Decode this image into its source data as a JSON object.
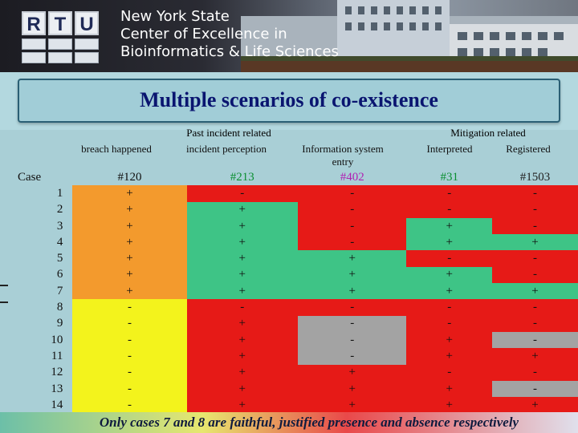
{
  "header": {
    "logo_letters": [
      "R",
      "T",
      "U"
    ],
    "org_lines": [
      "New York State",
      "Center of Excellence in",
      "Bioinformatics & Life Sciences"
    ]
  },
  "slide": {
    "title": "Multiple scenarios of co-existence",
    "footer": "Only cases 7 and 8 are faithful, justified presence and absence respectively"
  },
  "columns": {
    "group_incident": "Past incident related",
    "group_mitigation": "Mitigation related",
    "case_label": "Case",
    "headers": [
      "breach happened",
      "incident perception",
      "Information system entry",
      "Interpreted",
      "Registered"
    ],
    "totals": [
      "#120",
      "#213",
      "#402",
      "#31",
      "#1503"
    ]
  },
  "colors": {
    "orange": "#f39a2d",
    "yellow": "#f3f31c",
    "green": "#3ec486",
    "red": "#e61a17",
    "title": "#0a1570",
    "total_green": "#0b8f31",
    "total_purple": "#b11fb3"
  },
  "rows": [
    {
      "case": "1",
      "values": [
        "+",
        "-",
        "-",
        "-",
        "-"
      ],
      "colors": [
        "o",
        "r",
        "r",
        "r",
        "r"
      ]
    },
    {
      "case": "2",
      "values": [
        "+",
        "+",
        "-",
        "-",
        "-"
      ],
      "colors": [
        "o",
        "g",
        "r",
        "r",
        "r"
      ]
    },
    {
      "case": "3",
      "values": [
        "+",
        "+",
        "-",
        "+",
        "-"
      ],
      "colors": [
        "o",
        "g",
        "r",
        "g",
        "r"
      ]
    },
    {
      "case": "4",
      "values": [
        "+",
        "+",
        "-",
        "+",
        "+"
      ],
      "colors": [
        "o",
        "g",
        "r",
        "g",
        "g"
      ]
    },
    {
      "case": "5",
      "values": [
        "+",
        "+",
        "+",
        "-",
        "-"
      ],
      "colors": [
        "o",
        "g",
        "g",
        "r",
        "r"
      ]
    },
    {
      "case": "6",
      "values": [
        "+",
        "+",
        "+",
        "+",
        "-"
      ],
      "colors": [
        "o",
        "g",
        "g",
        "g",
        "r"
      ]
    },
    {
      "case": "7",
      "values": [
        "+",
        "+",
        "+",
        "+",
        "+"
      ],
      "colors": [
        "o",
        "g",
        "g",
        "g",
        "g"
      ]
    },
    {
      "case": "8",
      "values": [
        "-",
        "-",
        "-",
        "-",
        "-"
      ],
      "colors": [
        "y",
        "r",
        "r",
        "r",
        "r"
      ]
    },
    {
      "case": "9",
      "values": [
        "-",
        "+",
        "-",
        "-",
        "-"
      ],
      "colors": [
        "y",
        "r",
        "b",
        "r",
        "r"
      ]
    },
    {
      "case": "10",
      "values": [
        "-",
        "+",
        "-",
        "+",
        "-"
      ],
      "colors": [
        "y",
        "r",
        "b",
        "r",
        "b"
      ]
    },
    {
      "case": "11",
      "values": [
        "-",
        "+",
        "-",
        "+",
        "+"
      ],
      "colors": [
        "y",
        "r",
        "b",
        "r",
        "r"
      ]
    },
    {
      "case": "12",
      "values": [
        "-",
        "+",
        "+",
        "-",
        "-"
      ],
      "colors": [
        "y",
        "r",
        "r",
        "r",
        "r"
      ]
    },
    {
      "case": "13",
      "values": [
        "-",
        "+",
        "+",
        "+",
        "-"
      ],
      "colors": [
        "y",
        "r",
        "r",
        "r",
        "b"
      ]
    },
    {
      "case": "14",
      "values": [
        "-",
        "+",
        "+",
        "+",
        "+"
      ],
      "colors": [
        "y",
        "r",
        "r",
        "r",
        "r"
      ]
    }
  ]
}
